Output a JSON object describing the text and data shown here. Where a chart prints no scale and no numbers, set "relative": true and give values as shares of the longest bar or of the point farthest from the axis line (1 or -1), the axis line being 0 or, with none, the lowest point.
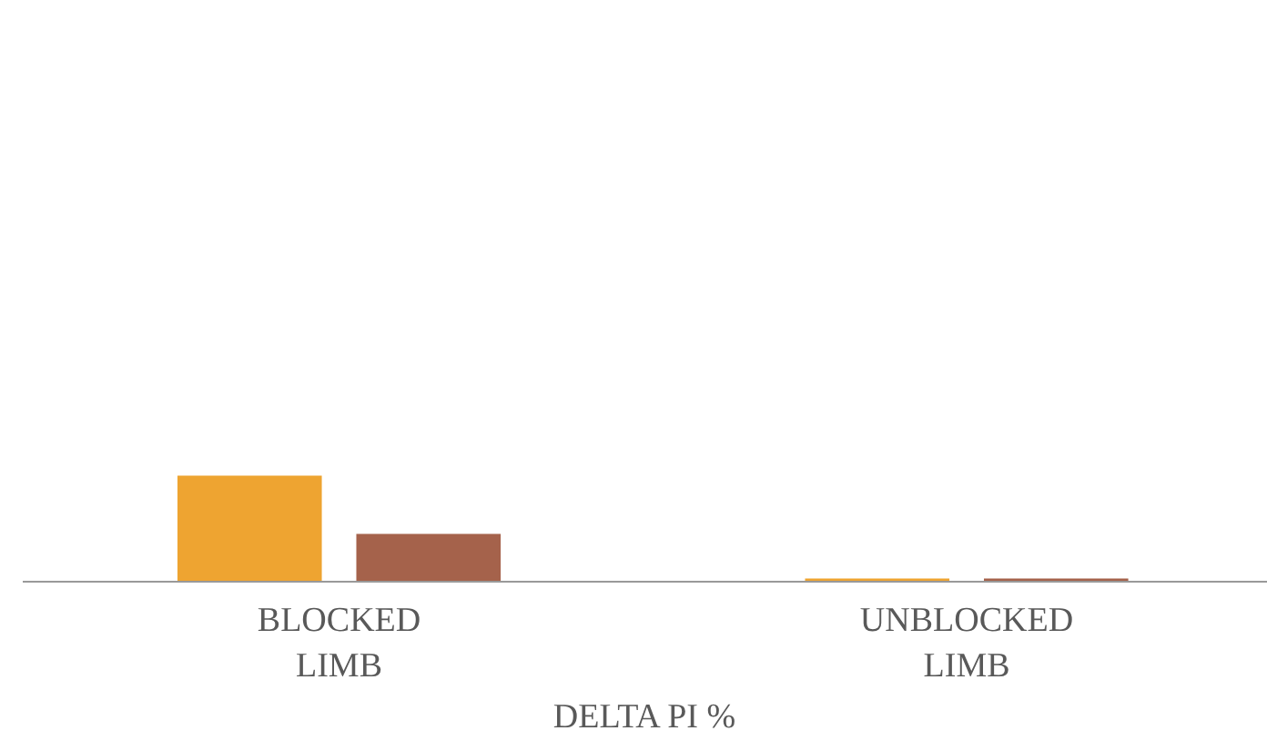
{
  "chart_data": {
    "type": "bar",
    "relative": true,
    "xlabel": "DELTA PI %",
    "categories": [
      "BLOCKED LIMB",
      "UNBLOCKED LIMB"
    ],
    "series": [
      {
        "color": "#eea431",
        "values": [
          1,
          0.03
        ]
      },
      {
        "color": "#a5624b",
        "values": [
          0.45,
          0.03
        ]
      }
    ]
  }
}
